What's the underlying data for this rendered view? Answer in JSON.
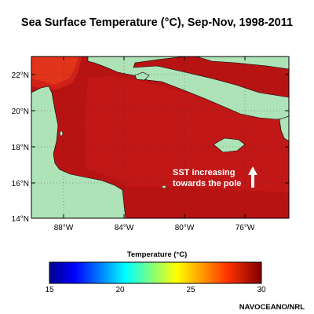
{
  "title": "Sea Surface Temperature (°C), Sep-Nov, 1998-2011",
  "map": {
    "lat_ticks": [
      "22°N",
      "20°N",
      "18°N",
      "16°N",
      "14°N"
    ],
    "lon_ticks": [
      "88°W",
      "84°W",
      "80°W",
      "76°W"
    ],
    "annotation_line1": "SST increasing",
    "annotation_line2": "towards the pole",
    "annotation_arrow": "up-arrow",
    "colors": {
      "sea_warm": "#b81313",
      "sea_warmer": "#c41818",
      "sea_hot": "#e83a18",
      "land": "#aee3b8"
    }
  },
  "colorbar": {
    "label": "Temperature (°C)",
    "ticks": [
      "15",
      "20",
      "25",
      "30"
    ],
    "min": 15,
    "max": 30
  },
  "credit": "NAVOCEANO/NRL"
}
